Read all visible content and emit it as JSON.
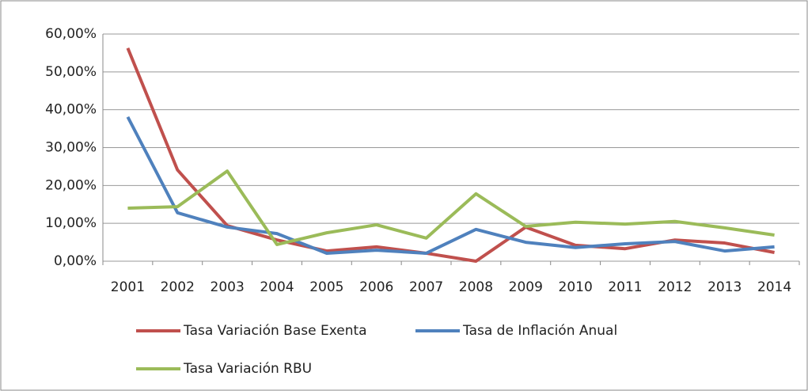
{
  "chart_data": {
    "type": "line",
    "categories": [
      "2001",
      "2002",
      "2003",
      "2004",
      "2005",
      "2006",
      "2007",
      "2008",
      "2009",
      "2010",
      "2011",
      "2012",
      "2013",
      "2014"
    ],
    "series": [
      {
        "name": "Tasa Variación Base Exenta",
        "color": "#c0504d",
        "values": [
          56.3,
          24.1,
          9.4,
          5.6,
          2.7,
          3.8,
          2.1,
          0,
          9.0,
          4.2,
          3.3,
          5.6,
          4.8,
          2.3
        ]
      },
      {
        "name": "Tasa de Inflación Anual",
        "color": "#4f81bd",
        "values": [
          38.1,
          12.8,
          9.0,
          7.3,
          2.1,
          2.9,
          2.1,
          8.4,
          5.0,
          3.6,
          4.6,
          5.2,
          2.7,
          3.8
        ]
      },
      {
        "name": "Tasa Variación RBU",
        "color": "#9bbb59",
        "values": [
          14.0,
          14.4,
          23.8,
          4.4,
          7.5,
          9.6,
          6.1,
          17.8,
          9.2,
          10.3,
          9.8,
          10.5,
          8.8,
          6.9
        ]
      }
    ],
    "ylim": [
      0,
      60
    ],
    "yticks": [
      {
        "value": 0,
        "label": "0,00%"
      },
      {
        "value": 10,
        "label": "10,00%"
      },
      {
        "value": 20,
        "label": "20,00%"
      },
      {
        "value": 30,
        "label": "30,00%"
      },
      {
        "value": 40,
        "label": "40,00%"
      },
      {
        "value": 50,
        "label": "50,00%"
      },
      {
        "value": 60,
        "label": "60,00%"
      }
    ],
    "grid": true
  }
}
